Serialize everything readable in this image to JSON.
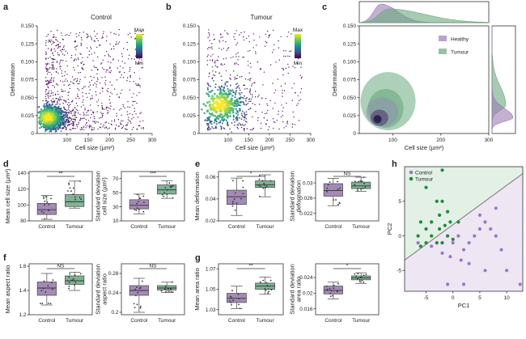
{
  "figure": {
    "colors": {
      "control": "#9b7bb6",
      "tumour": "#6aa97d",
      "control_box": "#a48ab6",
      "tumour_box": "#7fb392",
      "pca_control_dot": "#9a78c6",
      "pca_tumour_dot": "#1f8a3c",
      "pca_control_bg": "#efe6f4",
      "pca_tumour_bg": "#e3f0e6"
    }
  },
  "chart_data": [
    {
      "panel": "a",
      "type": "scatter",
      "title": "Control",
      "xlabel": "Cell size (µm²)",
      "ylabel": "Deformation",
      "xlim": [
        30,
        300
      ],
      "ylim": [
        0,
        0.15
      ],
      "xticks": [
        "100",
        "150",
        "200",
        "250",
        "300"
      ],
      "yticks": [
        "0",
        "0.025",
        "0.050",
        "0.075",
        "0.100",
        "0.125",
        "0.150"
      ],
      "colorbar": {
        "max_label": "Max",
        "min_label": "Min"
      },
      "density_peak": [
        55,
        0.022
      ],
      "n_points": 1500
    },
    {
      "panel": "b",
      "type": "scatter",
      "title": "Tumour",
      "xlabel": "Cell size (µm²)",
      "ylabel": "Deformation",
      "xlim": [
        30,
        300
      ],
      "ylim": [
        0,
        0.15
      ],
      "xticks": [
        "100",
        "150",
        "200",
        "250",
        "300"
      ],
      "yticks": [
        "0",
        "0.025",
        "0.050",
        "0.075",
        "0.100",
        "0.125",
        "0.150"
      ],
      "colorbar": {
        "max_label": "Max",
        "min_label": "Min"
      },
      "density_peak": [
        80,
        0.04
      ],
      "n_points": 700
    },
    {
      "panel": "c",
      "type": "area",
      "xlabel": "Cell size (µm²)",
      "ylabel": "Deformation",
      "xlim": [
        30,
        300
      ],
      "ylim": [
        0,
        0.15
      ],
      "xticks": [
        "100",
        "200",
        "300"
      ],
      "yticks": [
        "0",
        "0.025",
        "0.050",
        "0.075",
        "0.100",
        "0.125",
        "0.150"
      ],
      "legend": [
        "Healthy",
        "Tumour"
      ],
      "legend_position": "top-right"
    },
    {
      "panel": "d",
      "type": "box",
      "ylabel": "Mean cell size (µm²)",
      "categories": [
        "Control",
        "Tumour"
      ],
      "ylim": [
        80,
        142
      ],
      "yticks": [
        80,
        100,
        120,
        140
      ],
      "boxes": [
        {
          "whisker_low": 82,
          "q1": 88,
          "median": 94,
          "q3": 102,
          "whisker_high": 112
        },
        {
          "whisker_low": 96,
          "q1": 98,
          "median": 104,
          "q3": 113,
          "whisker_high": 130
        }
      ],
      "significance": "**"
    },
    {
      "panel": "d2",
      "type": "box",
      "ylabel": "Standard deviation cell size (µm²)",
      "categories": [
        "Control",
        "Tumour"
      ],
      "ylim": [
        10,
        80
      ],
      "yticks": [
        10,
        30,
        50,
        70
      ],
      "boxes": [
        {
          "whisker_low": 20,
          "q1": 27,
          "median": 32,
          "q3": 40,
          "whisker_high": 48
        },
        {
          "whisker_low": 42,
          "q1": 48,
          "median": 54,
          "q3": 61,
          "whisker_high": 67
        }
      ],
      "significance": "***"
    },
    {
      "panel": "e",
      "type": "box",
      "ylabel": "Mean deformation",
      "categories": [
        "Control",
        "Tumour"
      ],
      "ylim": [
        0.02,
        0.065
      ],
      "yticks": [
        0.02,
        0.04,
        0.06
      ],
      "boxes": [
        {
          "whisker_low": 0.025,
          "q1": 0.035,
          "median": 0.042,
          "q3": 0.048,
          "whisker_high": 0.059
        },
        {
          "whisker_low": 0.042,
          "q1": 0.0505,
          "median": 0.053,
          "q3": 0.0565,
          "whisker_high": 0.062
        }
      ],
      "significance": "*"
    },
    {
      "panel": "e2",
      "type": "box",
      "ylabel": "Standard deviation deformation",
      "categories": [
        "Control",
        "Tumour"
      ],
      "ylim": [
        0.02,
        0.033
      ],
      "yticks": [
        0.022,
        0.026,
        0.03
      ],
      "boxes": [
        {
          "whisker_low": 0.024,
          "q1": 0.0265,
          "median": 0.028,
          "q3": 0.0298,
          "whisker_high": 0.0312
        },
        {
          "whisker_low": 0.0278,
          "q1": 0.0285,
          "median": 0.0292,
          "q3": 0.0302,
          "whisker_high": 0.0315
        }
      ],
      "significance": "NS"
    },
    {
      "panel": "f",
      "type": "box",
      "ylabel": "Mean aspect ratio",
      "categories": [
        "Control",
        "Tumour"
      ],
      "ylim": [
        1.2,
        1.62
      ],
      "yticks": [
        1.2,
        1.4,
        1.6
      ],
      "boxes": [
        {
          "whisker_low": 1.28,
          "q1": 1.36,
          "median": 1.42,
          "q3": 1.47,
          "whisker_high": 1.54
        },
        {
          "whisker_low": 1.4,
          "q1": 1.45,
          "median": 1.48,
          "q3": 1.52,
          "whisker_high": 1.55
        }
      ],
      "significance": "NS"
    },
    {
      "panel": "f2",
      "type": "box",
      "ylabel": "Standard deviation aspect ratio",
      "categories": [
        "Control",
        "Tumour"
      ],
      "ylim": [
        0.195,
        0.3
      ],
      "yticks": [
        0.2,
        0.24,
        0.28
      ],
      "boxes": [
        {
          "whisker_low": 0.2,
          "q1": 0.235,
          "median": 0.245,
          "q3": 0.255,
          "whisker_high": 0.27
        },
        {
          "whisker_low": 0.241,
          "q1": 0.246,
          "median": 0.25,
          "q3": 0.255,
          "whisker_high": 0.262
        }
      ],
      "significance": "NS"
    },
    {
      "panel": "g",
      "type": "box",
      "ylabel": "Mean area ratio",
      "categories": [
        "Control",
        "Tumour"
      ],
      "ylim": [
        1.025,
        1.075
      ],
      "yticks": [
        1.03,
        1.05,
        1.07
      ],
      "boxes": [
        {
          "whisker_low": 1.031,
          "q1": 1.037,
          "median": 1.041,
          "q3": 1.046,
          "whisker_high": 1.053
        },
        {
          "whisker_low": 1.045,
          "q1": 1.05,
          "median": 1.053,
          "q3": 1.056,
          "whisker_high": 1.062
        }
      ],
      "significance": "**"
    },
    {
      "panel": "g2",
      "type": "box",
      "ylabel": "Standard deviation area ratio",
      "categories": [
        "Control",
        "Tumour"
      ],
      "ylim": [
        0.0145,
        0.0275
      ],
      "yticks": [
        0.016,
        0.02,
        0.024
      ],
      "boxes": [
        {
          "whisker_low": 0.0185,
          "q1": 0.0198,
          "median": 0.0207,
          "q3": 0.0218,
          "whisker_high": 0.0228
        },
        {
          "whisker_low": 0.0225,
          "q1": 0.0234,
          "median": 0.0239,
          "q3": 0.0244,
          "whisker_high": 0.0252
        }
      ],
      "significance": "*"
    },
    {
      "panel": "h",
      "type": "scatter",
      "xlabel": "PC1",
      "ylabel": "PC2",
      "xlim": [
        -9,
        13
      ],
      "ylim": [
        -8,
        10
      ],
      "xticks": [
        -5,
        0,
        5,
        10
      ],
      "yticks": [
        -5,
        0,
        5
      ],
      "legend": [
        "Control",
        "Tumour"
      ],
      "series": [
        {
          "name": "Control",
          "points": [
            [
              -6.5,
              -1
            ],
            [
              -4,
              -1.5
            ],
            [
              -2,
              -2.5
            ],
            [
              0,
              -1
            ],
            [
              1,
              0
            ],
            [
              2,
              -2
            ],
            [
              3,
              -1
            ],
            [
              4,
              0
            ],
            [
              5,
              1
            ],
            [
              5,
              3
            ],
            [
              6,
              2
            ],
            [
              7,
              1
            ],
            [
              8,
              0
            ],
            [
              8,
              4
            ],
            [
              -1,
              -7
            ],
            [
              2,
              -7
            ],
            [
              6,
              -5
            ],
            [
              9,
              -2
            ],
            [
              10,
              -5
            ],
            [
              12.5,
              -7
            ],
            [
              -0.5,
              -3
            ],
            [
              1.5,
              -3.5
            ],
            [
              3,
              -4
            ]
          ]
        },
        {
          "name": "Tumour",
          "points": [
            [
              -2,
              9.5
            ],
            [
              -5,
              7
            ],
            [
              -3,
              5
            ],
            [
              -2,
              5
            ],
            [
              -2.5,
              1
            ],
            [
              -4,
              2
            ],
            [
              -5,
              1
            ],
            [
              -6,
              2
            ],
            [
              -6.5,
              0
            ],
            [
              -4,
              0
            ],
            [
              -3,
              -1
            ],
            [
              -5,
              -1
            ],
            [
              -6,
              -1.5
            ],
            [
              -2,
              -1
            ],
            [
              -1,
              0
            ],
            [
              -1.5,
              1.5
            ],
            [
              -0.5,
              2
            ],
            [
              -2.5,
              3
            ],
            [
              -1,
              3.5
            ],
            [
              0,
              -0.5
            ],
            [
              1,
              2
            ]
          ]
        }
      ]
    }
  ],
  "cell_sizes": {}
}
